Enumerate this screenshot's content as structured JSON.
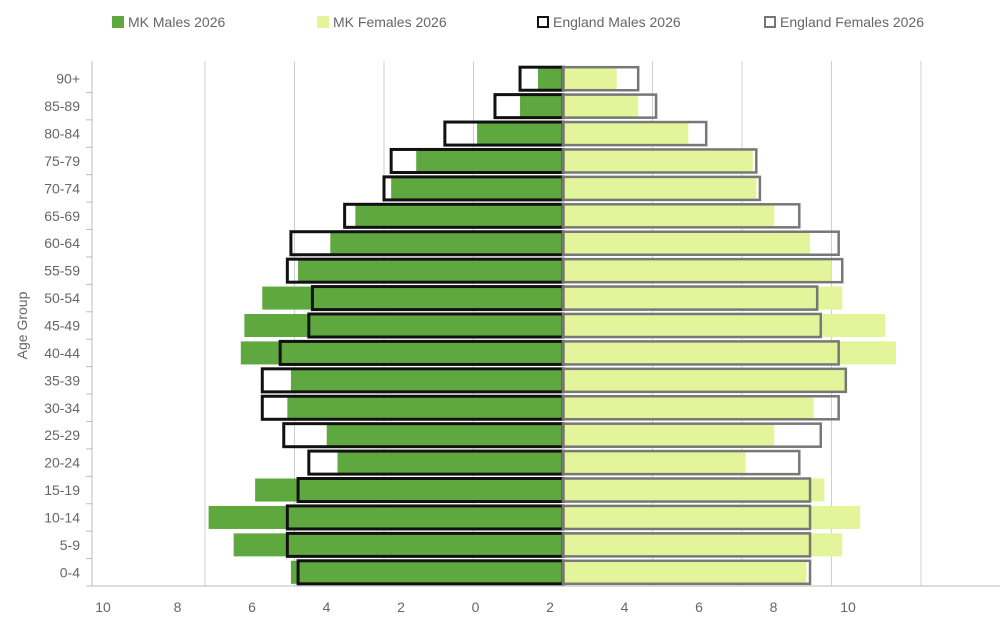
{
  "chart_data": {
    "type": "bar",
    "orientation": "horizontal",
    "layout": "population-pyramid",
    "title": "",
    "ylabel": "Age Group",
    "xlabel": "",
    "xlim": [
      -10,
      10
    ],
    "x_tick_labels": [
      "10",
      "8",
      "6",
      "4",
      "2",
      "0",
      "2",
      "4",
      "6",
      "8",
      "10"
    ],
    "x_tick_values": [
      -10,
      -8,
      -6,
      -4,
      -2,
      0,
      2,
      4,
      6,
      8,
      10
    ],
    "gridlines": [
      -10,
      -7.5,
      -5,
      -2.5,
      2.5,
      5,
      7.5,
      10
    ],
    "grid": true,
    "legend_position": "top",
    "categories": [
      "0-4",
      "5-9",
      "10-14",
      "15-19",
      "20-24",
      "25-29",
      "30-34",
      "35-39",
      "40-44",
      "45-49",
      "50-54",
      "55-59",
      "60-64",
      "65-69",
      "70-74",
      "75-79",
      "80-84",
      "85-89",
      "90+"
    ],
    "series": [
      {
        "name": "MK Males 2026",
        "side": "left",
        "style": "filled",
        "color": "#5fa83f",
        "values": [
          7.6,
          9.2,
          9.9,
          8.6,
          6.3,
          6.6,
          7.7,
          7.6,
          9.0,
          8.9,
          8.4,
          7.4,
          6.5,
          5.8,
          4.8,
          4.1,
          2.4,
          1.2,
          0.7
        ]
      },
      {
        "name": "MK Females 2026",
        "side": "right",
        "style": "filled",
        "color": "#e4f49a",
        "values": [
          6.8,
          7.8,
          8.3,
          7.3,
          5.1,
          5.9,
          7.0,
          7.9,
          9.3,
          9.0,
          7.8,
          7.5,
          6.9,
          5.9,
          5.4,
          5.3,
          3.5,
          2.1,
          1.5
        ]
      },
      {
        "name": "England Males 2026",
        "side": "left",
        "style": "outline",
        "color": "#111111",
        "values": [
          7.4,
          7.7,
          7.7,
          7.4,
          7.1,
          7.8,
          8.4,
          8.4,
          7.9,
          7.1,
          7.0,
          7.7,
          7.6,
          6.1,
          5.0,
          4.8,
          3.3,
          1.9,
          1.2
        ]
      },
      {
        "name": "England Females 2026",
        "side": "right",
        "style": "outline",
        "color": "#777777",
        "values": [
          6.9,
          6.9,
          6.9,
          6.9,
          6.6,
          7.2,
          7.7,
          7.9,
          7.7,
          7.2,
          7.1,
          7.8,
          7.7,
          6.6,
          5.5,
          5.4,
          4.0,
          2.6,
          2.1
        ]
      }
    ]
  }
}
